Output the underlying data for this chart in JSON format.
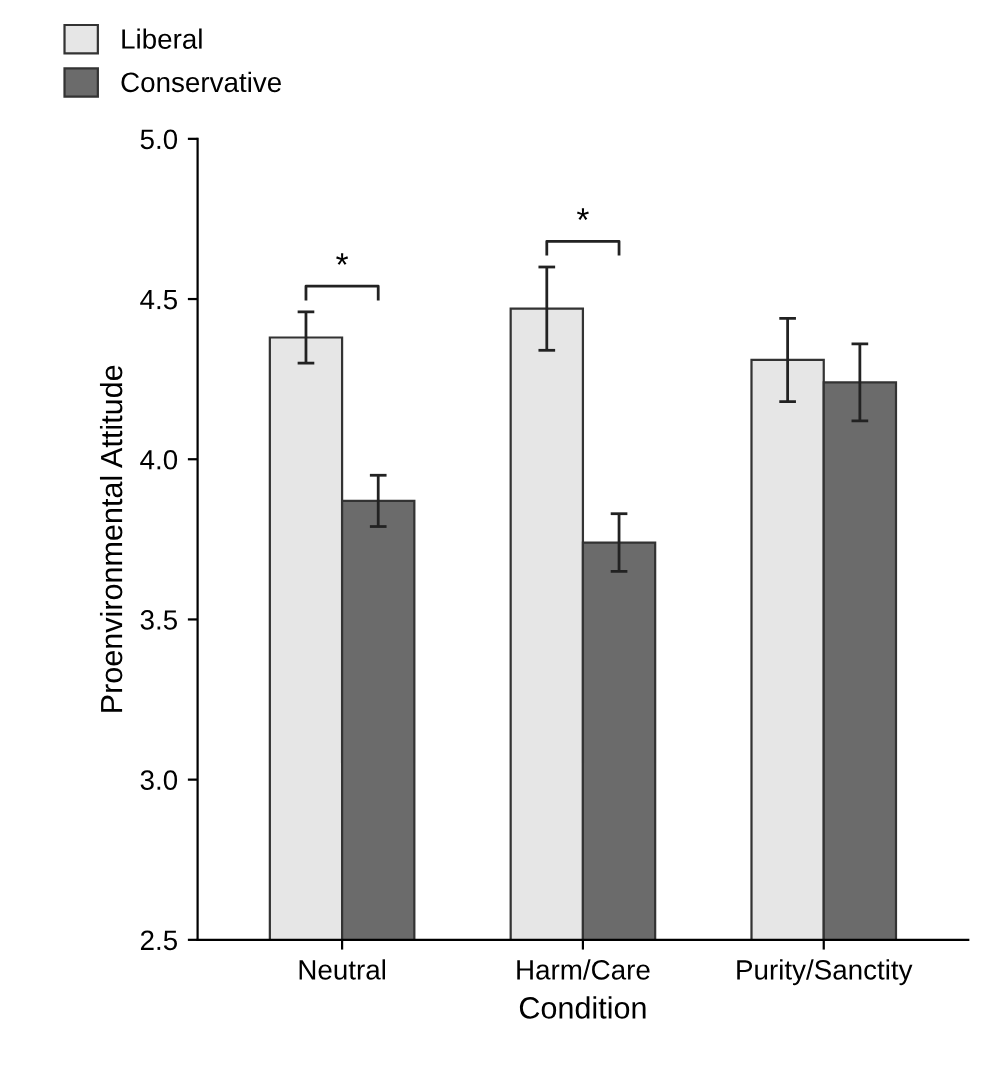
{
  "chart_data": {
    "type": "bar",
    "xlabel": "Condition",
    "ylabel": "Proenvironmental Attitude",
    "categories": [
      "Neutral",
      "Harm/Care",
      "Purity/Sanctity"
    ],
    "series": [
      {
        "name": "Liberal",
        "color": "#e6e6e6",
        "values": [
          4.38,
          4.47,
          4.31
        ],
        "errors": [
          0.08,
          0.13,
          0.13
        ]
      },
      {
        "name": "Conservative",
        "color": "#6b6b6b",
        "values": [
          3.87,
          3.74,
          4.24
        ],
        "errors": [
          0.08,
          0.09,
          0.12
        ]
      }
    ],
    "ylim": [
      2.5,
      5.0
    ],
    "yticks": [
      {
        "value": 2.5,
        "label": "2.5"
      },
      {
        "value": 3.0,
        "label": "3.0"
      },
      {
        "value": 3.5,
        "label": "3.5"
      },
      {
        "value": 4.0,
        "label": "4.0"
      },
      {
        "value": 4.5,
        "label": "4.5"
      },
      {
        "value": 5.0,
        "label": "5.0"
      }
    ],
    "annotations": [
      "*",
      "*"
    ],
    "grid": false,
    "legend": "top left"
  }
}
